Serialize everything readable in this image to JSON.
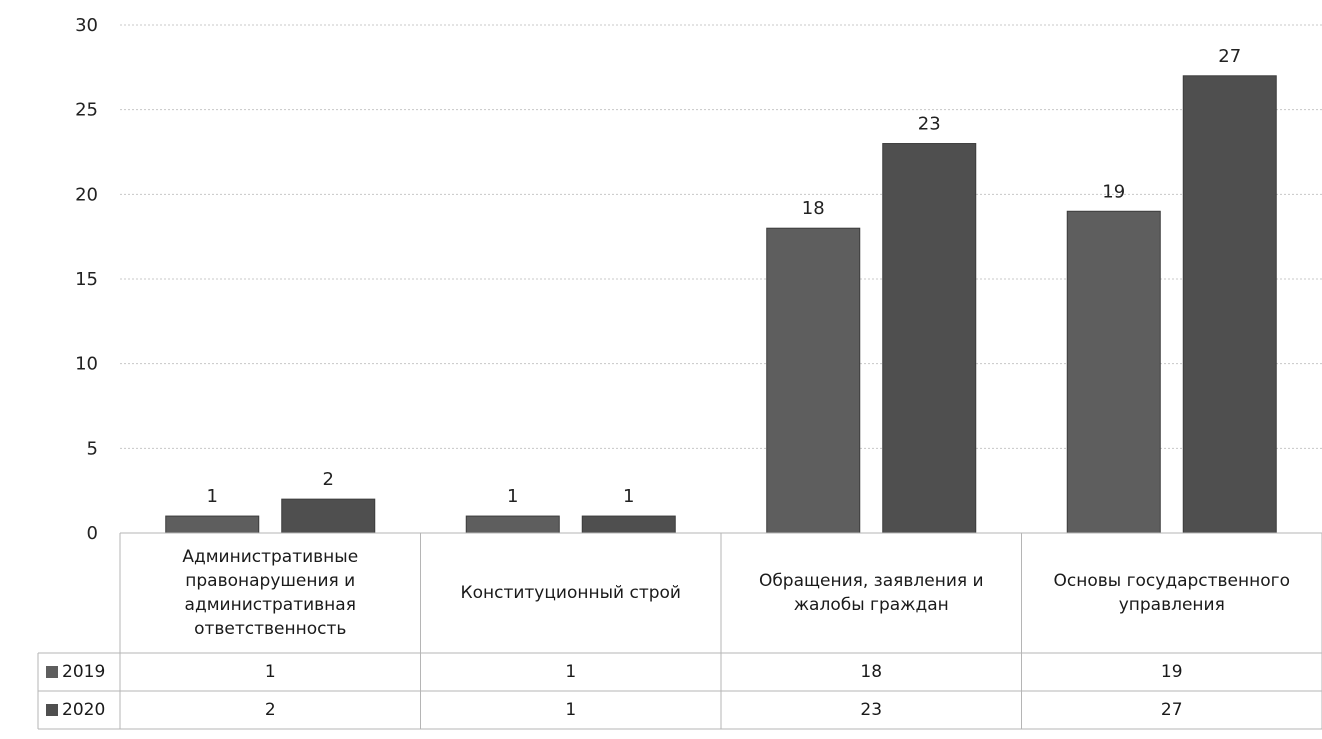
{
  "chart_data": {
    "type": "bar",
    "categories": [
      "Административные правонарушения и административная ответственность",
      "Конституционный строй",
      "Обращения, заявления и жалобы граждан",
      "Основы государственного управления"
    ],
    "series": [
      {
        "name": "2019",
        "values": [
          1,
          1,
          18,
          19
        ],
        "labels": [
          "1",
          "1",
          "18",
          "19"
        ]
      },
      {
        "name": "2020",
        "values": [
          2,
          1,
          23,
          27
        ],
        "labels": [
          "2",
          "1",
          "23",
          "27"
        ]
      }
    ],
    "ylim": [
      0,
      30
    ],
    "yticks": [
      "0",
      "5",
      "10",
      "15",
      "20",
      "25",
      "30"
    ],
    "grid": true,
    "legend": "data-table",
    "colors": {
      "2019": "#5e5e5e",
      "2020": "#4f4f4f"
    }
  }
}
